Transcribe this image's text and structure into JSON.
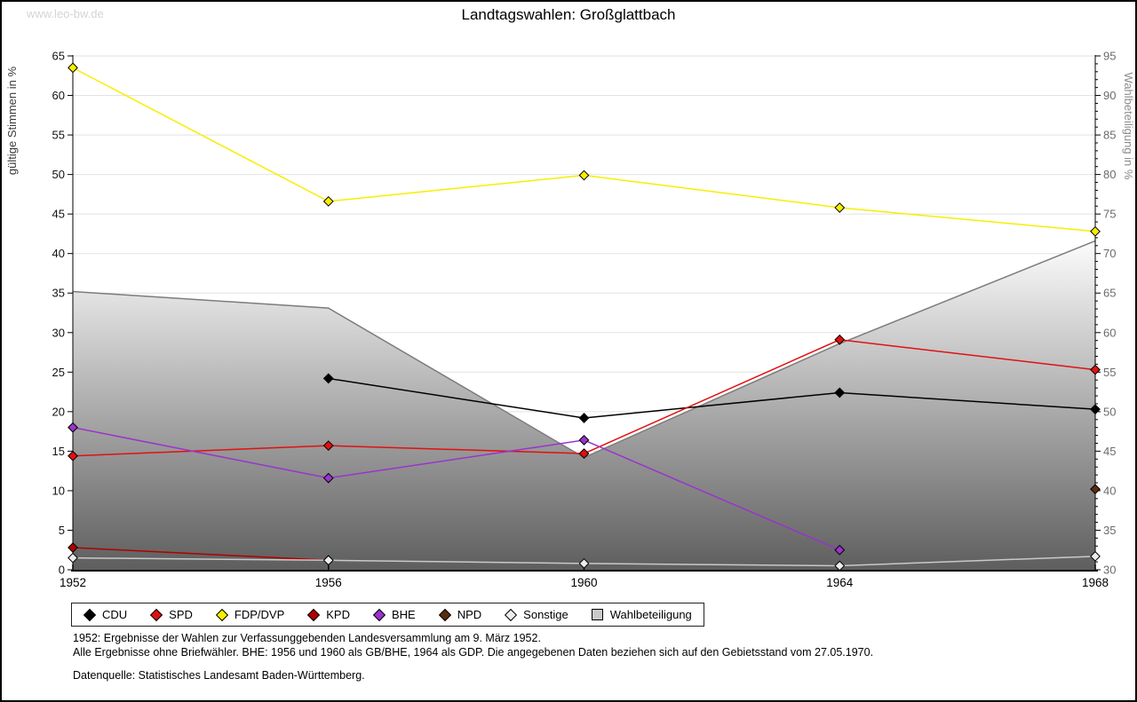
{
  "page": {
    "watermark": "www.leo-bw.de"
  },
  "chart_data": {
    "type": "line",
    "title": "Landtagswahlen: Großglattbach",
    "x": [
      1952,
      1956,
      1960,
      1964,
      1968
    ],
    "left_axis": {
      "label": "gültige Stimmen in %",
      "min": 0,
      "max": 65,
      "tick_step": 5
    },
    "right_axis": {
      "label": "Wahlbeteiligung in %",
      "min": 30,
      "max": 95,
      "tick_step": 5,
      "minor_tick_step": 1
    },
    "grid": true,
    "legend_position": "bottom",
    "series": [
      {
        "name": "CDU",
        "axis": "left",
        "kind": "line",
        "color": "#000000",
        "values": [
          null,
          24.2,
          19.2,
          22.4,
          20.3
        ]
      },
      {
        "name": "SPD",
        "axis": "left",
        "kind": "line",
        "color": "#e11010",
        "values": [
          14.4,
          15.7,
          14.7,
          29.1,
          25.3
        ]
      },
      {
        "name": "FDP/DVP",
        "axis": "left",
        "kind": "line",
        "color": "#f8ee00",
        "values": [
          63.5,
          46.6,
          49.9,
          45.8,
          42.8
        ]
      },
      {
        "name": "KPD",
        "axis": "left",
        "kind": "line",
        "color": "#b00000",
        "values": [
          2.8,
          1.2,
          null,
          null,
          null
        ]
      },
      {
        "name": "BHE",
        "axis": "left",
        "kind": "line",
        "color": "#9934cc",
        "values": [
          18.0,
          11.6,
          16.4,
          2.5,
          null
        ]
      },
      {
        "name": "NPD",
        "axis": "left",
        "kind": "line",
        "color": "#5a2d0c",
        "values": [
          null,
          null,
          null,
          null,
          10.2
        ]
      },
      {
        "name": "Sonstige",
        "axis": "left",
        "kind": "line",
        "color": "#c9c9c9",
        "marker_fill": "#ececec",
        "values": [
          1.5,
          1.2,
          0.8,
          0.5,
          1.7
        ]
      },
      {
        "name": "Wahlbeteiligung",
        "axis": "right",
        "kind": "area",
        "color": "#7c7c7c",
        "fill_top": "#fcfcfc",
        "fill_bottom": "#5e5e5e",
        "legend_swatch": "#c9c9c9",
        "values": [
          65.2,
          63.1,
          44.2,
          58.6,
          71.6
        ]
      }
    ]
  },
  "footnotes": {
    "line1": "1952: Ergebnisse der Wahlen zur Verfassunggebenden Landesversammlung am 9. März 1952.",
    "line2": "Alle Ergebnisse ohne Briefwähler. BHE: 1956 und 1960 als GB/BHE, 1964 als GDP. Die angegebenen Daten beziehen sich auf den Gebietsstand vom 27.05.1970.",
    "source": "Datenquelle: Statistisches Landesamt Baden-Württemberg."
  }
}
